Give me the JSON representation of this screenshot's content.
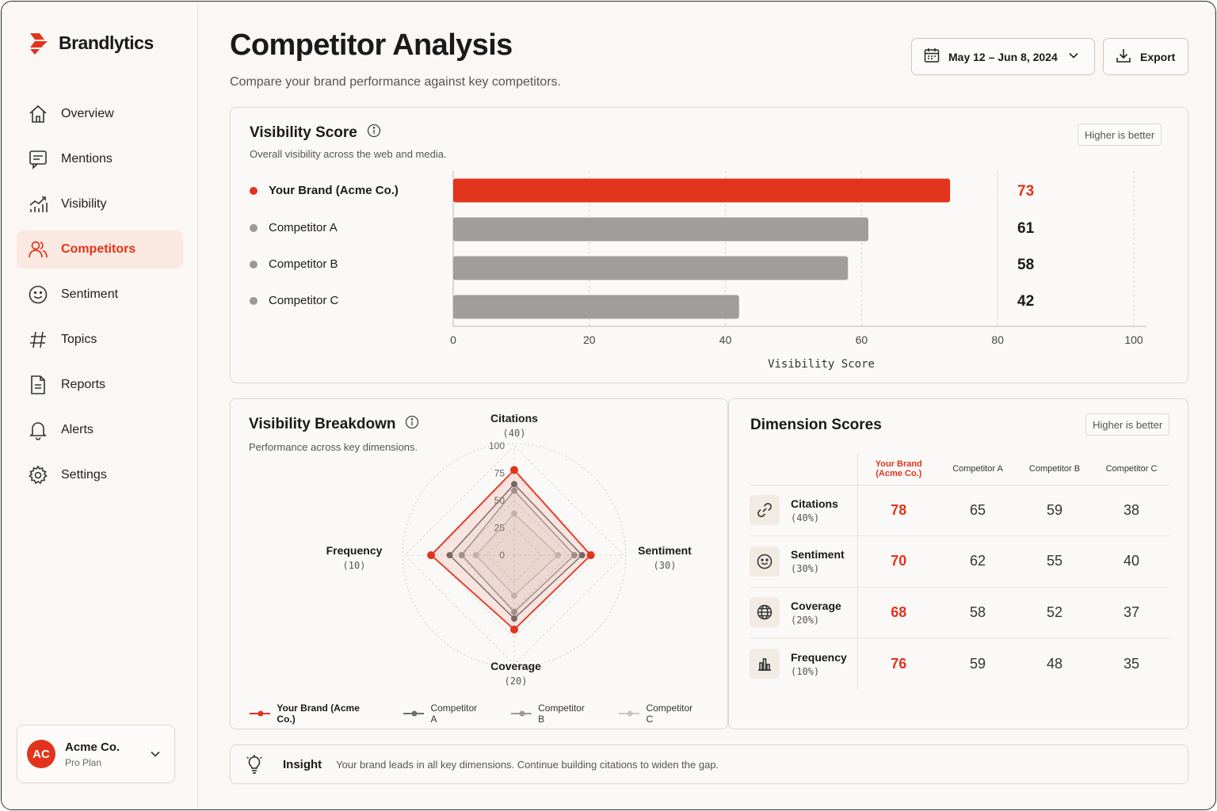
{
  "app": {
    "name": "Brandlytics"
  },
  "sidebar": {
    "items": [
      {
        "label": "Overview",
        "icon": "home-icon"
      },
      {
        "label": "Mentions",
        "icon": "message-icon"
      },
      {
        "label": "Visibility",
        "icon": "trend-chart-icon"
      },
      {
        "label": "Competitors",
        "icon": "users-icon",
        "active": true
      },
      {
        "label": "Sentiment",
        "icon": "smile-icon"
      },
      {
        "label": "Topics",
        "icon": "hash-icon"
      },
      {
        "label": "Reports",
        "icon": "document-icon"
      },
      {
        "label": "Alerts",
        "icon": "bell-icon"
      },
      {
        "label": "Settings",
        "icon": "gear-icon"
      }
    ],
    "account": {
      "initials": "AC",
      "name": "Acme Co.",
      "plan": "Pro Plan"
    }
  },
  "header": {
    "title": "Competitor Analysis",
    "subtitle": "Compare your brand performance against key competitors.",
    "date_range": "May 12 – Jun 8, 2024",
    "export_label": "Export"
  },
  "visibility": {
    "title": "Visibility Score",
    "subtitle": "Overall visibility across the web and media.",
    "tag": "Higher is better"
  },
  "breakdown": {
    "title": "Visibility Breakdown",
    "subtitle": "Performance across key dimensions."
  },
  "dimensions": {
    "title": "Dimension Scores",
    "tag": "Higher is better",
    "columns": [
      "Your Brand (Acme Co.)",
      "Competitor A",
      "Competitor B",
      "Competitor C"
    ],
    "rows": [
      {
        "name": "Citations",
        "weight": "(40%)",
        "icon": "link-icon",
        "values": [
          78,
          65,
          59,
          38
        ]
      },
      {
        "name": "Sentiment",
        "weight": "(30%)",
        "icon": "smile-icon",
        "values": [
          70,
          62,
          55,
          40
        ]
      },
      {
        "name": "Coverage",
        "weight": "(20%)",
        "icon": "globe-icon",
        "values": [
          68,
          58,
          52,
          37
        ]
      },
      {
        "name": "Frequency",
        "weight": "(10%)",
        "icon": "bar-chart-icon",
        "values": [
          76,
          59,
          48,
          35
        ]
      }
    ]
  },
  "insight": {
    "label": "Insight",
    "text": "Your brand leads in all key dimensions. Continue building citations to widen the gap."
  },
  "colors": {
    "accent": "#e2341d",
    "compA": "#6e6e6e",
    "compB": "#9c9a98",
    "compC": "#c9c6c3",
    "bar_gray": "#a09d9a"
  },
  "chart_data": [
    {
      "type": "bar",
      "orientation": "horizontal",
      "categories": [
        "Your Brand (Acme Co.)",
        "Competitor A",
        "Competitor B",
        "Competitor C"
      ],
      "values": [
        73,
        61,
        58,
        42
      ],
      "xlabel": "Visibility Score",
      "xlim": [
        0,
        100
      ],
      "xticks": [
        0,
        20,
        40,
        60,
        80,
        100
      ],
      "grid": true
    },
    {
      "type": "radar",
      "axes": [
        {
          "name": "Citations",
          "weight": "(40)"
        },
        {
          "name": "Sentiment",
          "weight": "(30)"
        },
        {
          "name": "Coverage",
          "weight": "(20)"
        },
        {
          "name": "Frequency",
          "weight": "(10)"
        }
      ],
      "rlim": [
        0,
        100
      ],
      "rticks": [
        0,
        25,
        50,
        75,
        100
      ],
      "series": [
        {
          "name": "Your Brand (Acme Co.)",
          "values": [
            78,
            70,
            68,
            76
          ]
        },
        {
          "name": "Competitor A",
          "values": [
            65,
            62,
            58,
            59
          ]
        },
        {
          "name": "Competitor B",
          "values": [
            59,
            55,
            52,
            48
          ]
        },
        {
          "name": "Competitor C",
          "values": [
            38,
            40,
            37,
            35
          ]
        }
      ],
      "legend": "bottom"
    }
  ]
}
